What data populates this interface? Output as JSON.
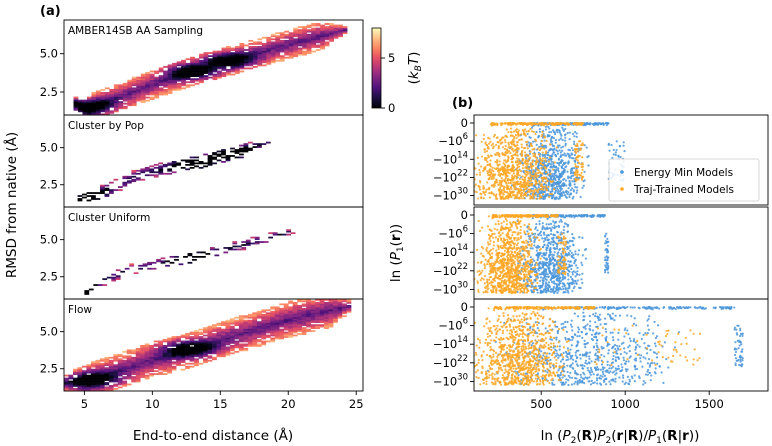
{
  "panel_labels": {
    "a": "(a)",
    "b": "(b)"
  },
  "chart_data": [
    {
      "type": "heatmap",
      "panel": "a",
      "xlabel": "End-to-end distance (Å)",
      "ylabel": "RMSD from native (Å)",
      "xlim": [
        3.5,
        25.5
      ],
      "ylim": [
        1.0,
        7.2
      ],
      "x_ticks": [
        {
          "v": 5,
          "t": "5"
        },
        {
          "v": 10,
          "t": "10"
        },
        {
          "v": 15,
          "t": "15"
        },
        {
          "v": 20,
          "t": "20"
        },
        {
          "v": 25,
          "t": "25"
        }
      ],
      "y_ticks": [
        {
          "v": 2.5,
          "t": "2.5"
        },
        {
          "v": 5.0,
          "t": "5.0"
        }
      ],
      "colorbar": {
        "label": "(k_B T)",
        "range": [
          0,
          8
        ],
        "ticks": [
          {
            "v": 0,
            "t": "0"
          },
          {
            "v": 5,
            "t": "5"
          }
        ]
      },
      "subplots": [
        {
          "title": "AMBER14SB AA Sampling",
          "trend": [
            [
              4.2,
              1.7
            ],
            [
              5,
              1.3
            ],
            [
              10,
              3.0
            ],
            [
              13,
              3.9
            ],
            [
              16,
              4.6
            ],
            [
              20,
              5.6
            ],
            [
              24,
              6.5
            ]
          ],
          "spread": 0.95,
          "density": 1.0,
          "cores": [
            [
              5.1,
              1.5
            ],
            [
              12.8,
              3.8
            ],
            [
              15.4,
              4.5
            ]
          ]
        },
        {
          "title": "Cluster by Pop",
          "trend": [
            [
              4.5,
              1.5
            ],
            [
              5.5,
              1.7
            ],
            [
              9,
              3.2
            ],
            [
              13,
              3.9
            ],
            [
              16,
              4.6
            ],
            [
              18.5,
              5.4
            ]
          ],
          "spread": 0.45,
          "density": 0.55,
          "cores": [
            [
              5.0,
              1.6
            ],
            [
              13.0,
              3.9
            ],
            [
              15.5,
              4.6
            ]
          ]
        },
        {
          "title": "Cluster Uniform",
          "trend": [
            [
              5,
              1.4
            ],
            [
              6,
              2.1
            ],
            [
              8,
              2.9
            ],
            [
              12,
              3.6
            ],
            [
              16,
              4.5
            ],
            [
              20.5,
              5.6
            ]
          ],
          "spread": 0.35,
          "density": 0.35,
          "cores": [
            [
              5.0,
              1.3
            ],
            [
              13.0,
              3.7
            ]
          ]
        },
        {
          "title": "Flow",
          "trend": [
            [
              3.5,
              1.5
            ],
            [
              5,
              1.6
            ],
            [
              10,
              3.1
            ],
            [
              13,
              3.8
            ],
            [
              16,
              4.7
            ],
            [
              20,
              5.8
            ],
            [
              24.5,
              6.7
            ]
          ],
          "spread": 1.2,
          "density": 1.0,
          "cores": [
            [
              12.5,
              3.8
            ],
            [
              5.5,
              1.7
            ]
          ]
        }
      ]
    },
    {
      "type": "scatter",
      "panel": "b",
      "xlabel": "ln (P₂(R)P₂(r|R)/P₁(R|r))",
      "ylabel": "ln (P₁(r))",
      "x_ticks": [
        {
          "v": 500,
          "t": "500"
        },
        {
          "v": 1000,
          "t": "1000"
        },
        {
          "v": 1500,
          "t": "1500"
        }
      ],
      "xlim": [
        100,
        1850
      ],
      "y_ticks": [
        {
          "v": 0,
          "t": "0",
          "sup": ""
        },
        {
          "v": 1,
          "t": "−10",
          "sup": "6"
        },
        {
          "v": 2,
          "t": "−10",
          "sup": "14"
        },
        {
          "v": 3,
          "t": "−10",
          "sup": "22"
        },
        {
          "v": 4,
          "t": "−10",
          "sup": "30"
        }
      ],
      "legend": {
        "position": "right",
        "entries": [
          "Energy Min Models",
          "Traj-Trained Models"
        ]
      },
      "series_colors": {
        "Energy Min Models": "#4b97db",
        "Traj-Trained Models": "#ffa726"
      },
      "subplots": [
        {
          "energy_min_xrange": [
            450,
            900
          ],
          "traj_xrange": [
            200,
            750
          ],
          "energy_min_tail": 1000,
          "traj_tail": 700
        },
        {
          "energy_min_xrange": [
            450,
            880
          ],
          "traj_xrange": [
            210,
            600
          ],
          "energy_min_tail": 900,
          "traj_tail": 650
        },
        {
          "energy_min_xrange": [
            500,
            1650
          ],
          "traj_xrange": [
            220,
            820
          ],
          "energy_min_tail": 1700,
          "traj_tail": 1450
        }
      ]
    }
  ]
}
